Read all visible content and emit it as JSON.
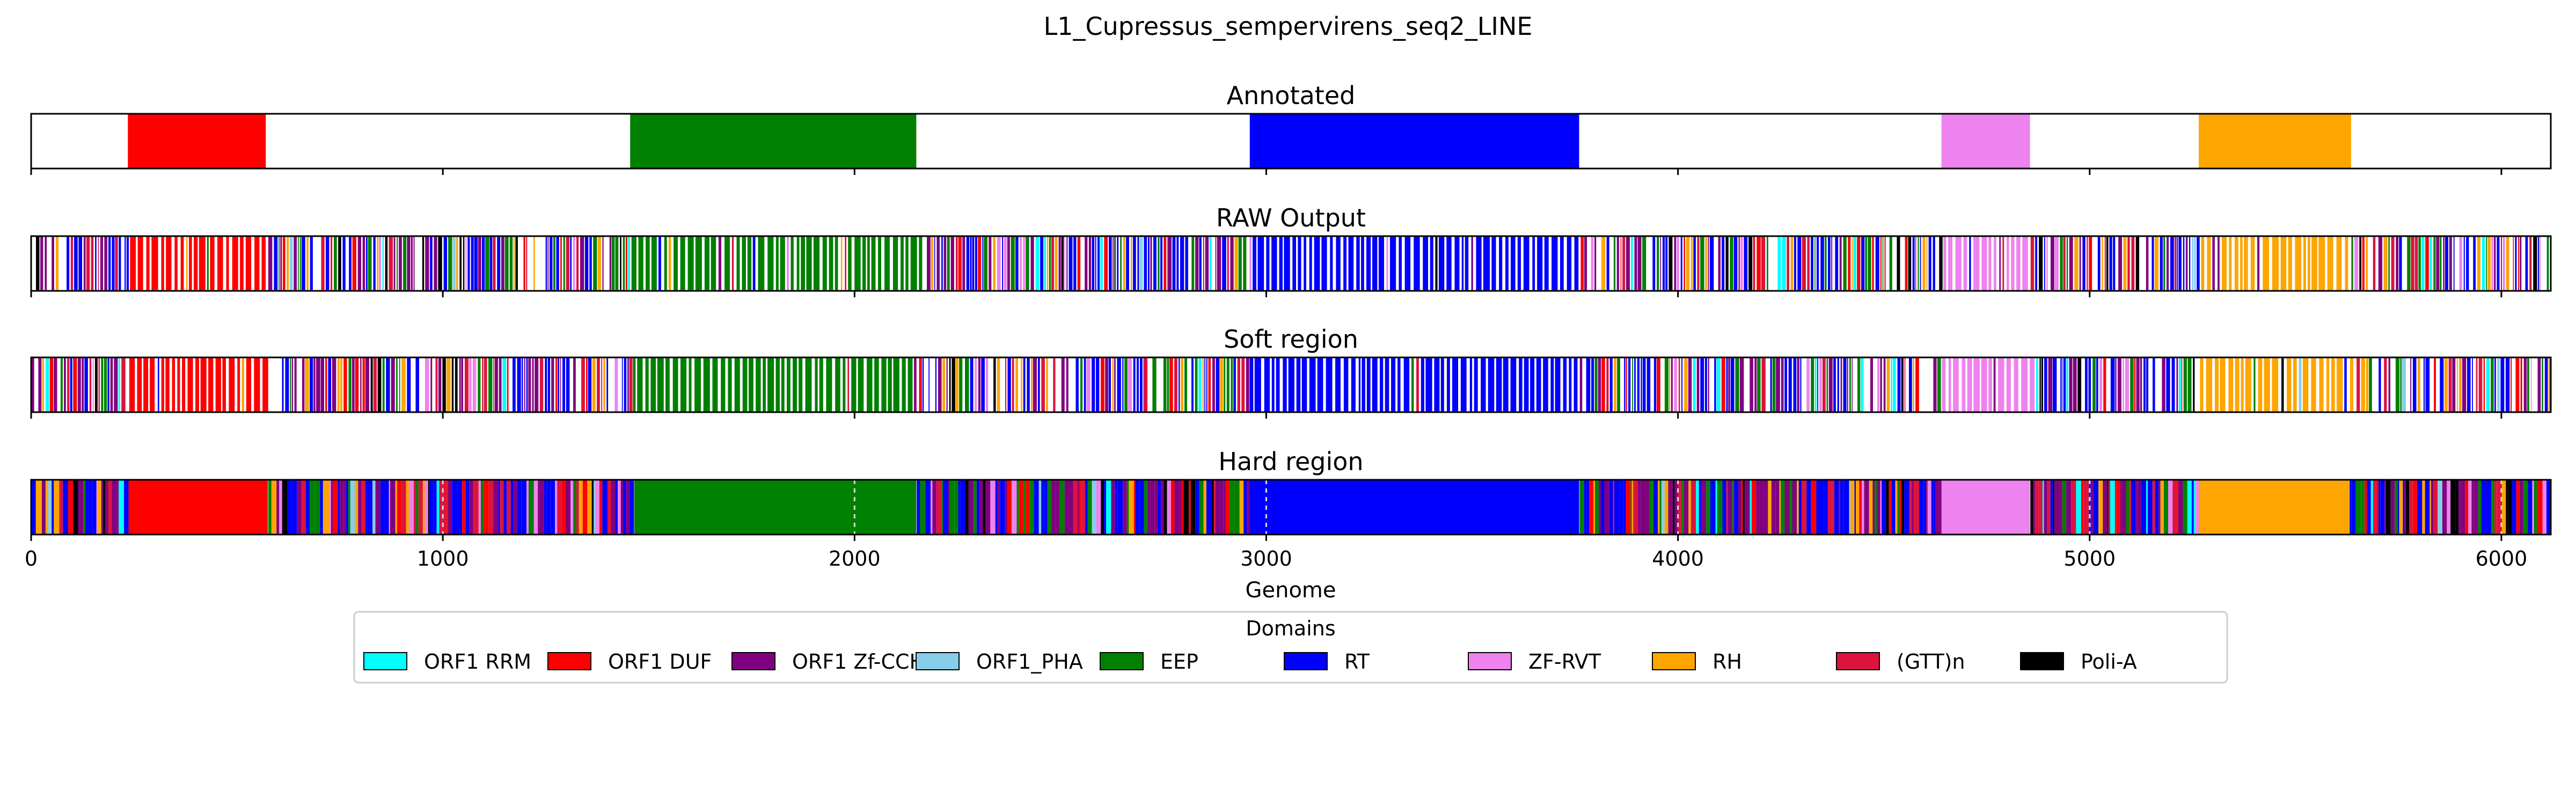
{
  "chart_data": {
    "type": "genome-domain-track",
    "title": "L1_Cupressus_sempervirens_seq2_LINE",
    "xlabel": "Genome",
    "xlim": [
      0,
      6120
    ],
    "xticks": [
      0,
      1000,
      2000,
      3000,
      4000,
      5000,
      6000
    ],
    "grid": false,
    "legend": {
      "title": "Domains",
      "placement": "bottom-center",
      "entries": [
        {
          "name": "ORF1 RRM",
          "color": "#00ffff"
        },
        {
          "name": "ORF1 DUF",
          "color": "#ff0000"
        },
        {
          "name": "ORF1 Zf-CCHC",
          "color": "#800080"
        },
        {
          "name": "ORF1_PHA",
          "color": "#87ceeb"
        },
        {
          "name": "EEP",
          "color": "#008000"
        },
        {
          "name": "RT",
          "color": "#0000ff"
        },
        {
          "name": "ZF-RVT",
          "color": "#ee82ee"
        },
        {
          "name": "RH",
          "color": "#ffa500"
        },
        {
          "name": "(GTT)n",
          "color": "#dc143c"
        },
        {
          "name": "Poli-A",
          "color": "#000000"
        }
      ]
    },
    "panels": [
      {
        "title": "Annotated",
        "regions": [
          {
            "domain": "ORF1 DUF",
            "start": 235,
            "end": 570
          },
          {
            "domain": "EEP",
            "start": 1455,
            "end": 2150
          },
          {
            "domain": "RT",
            "start": 2960,
            "end": 3760
          },
          {
            "domain": "ZF-RVT",
            "start": 4640,
            "end": 4855
          },
          {
            "domain": "RH",
            "start": 5265,
            "end": 5635
          }
        ]
      },
      {
        "title": "RAW Output",
        "regions": [
          {
            "domain": "ORF1 DUF",
            "start": 235,
            "end": 570
          },
          {
            "domain": "EEP",
            "start": 1455,
            "end": 2150
          },
          {
            "domain": "RT",
            "start": 2960,
            "end": 3760
          },
          {
            "domain": "ZF-RVT",
            "start": 4640,
            "end": 4855
          },
          {
            "domain": "RH",
            "start": 5265,
            "end": 5635
          }
        ]
      },
      {
        "title": "Soft region",
        "regions": [
          {
            "domain": "ORF1 DUF",
            "start": 235,
            "end": 570
          },
          {
            "domain": "EEP",
            "start": 1455,
            "end": 2150
          },
          {
            "domain": "RT",
            "start": 2960,
            "end": 3760
          },
          {
            "domain": "ZF-RVT",
            "start": 4640,
            "end": 4855
          },
          {
            "domain": "RH",
            "start": 5265,
            "end": 5635
          }
        ]
      },
      {
        "title": "Hard region",
        "regions": [
          {
            "domain": "ORF1 DUF",
            "start": 240,
            "end": 575
          },
          {
            "domain": "EEP",
            "start": 1465,
            "end": 2150
          },
          {
            "domain": "RT",
            "start": 2960,
            "end": 3760
          },
          {
            "domain": "ZF-RVT",
            "start": 4640,
            "end": 4855
          },
          {
            "domain": "RH",
            "start": 5265,
            "end": 5630
          }
        ]
      }
    ]
  }
}
